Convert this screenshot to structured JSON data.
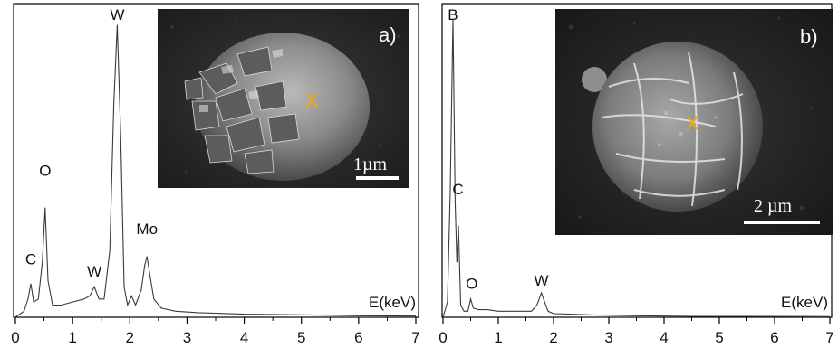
{
  "colors": {
    "spectrum_line": "#3a3a3a",
    "frame": "#000000",
    "marker": "#f2a900",
    "micrograph_bg": "#2c2c2c",
    "scale_bar": "#ffffff"
  },
  "chart_data": [
    {
      "type": "line",
      "panel": "a)",
      "xlabel": "E(keV)",
      "ylabel": "",
      "xlim": [
        0,
        7
      ],
      "ylim": [
        0,
        100
      ],
      "xticks": [
        "0",
        "1",
        "2",
        "3",
        "4",
        "5",
        "6",
        "7"
      ],
      "grid": false,
      "peak_labels": [
        {
          "text": "C",
          "x": 0.27,
          "y": 15
        },
        {
          "text": "O",
          "x": 0.52,
          "y": 44
        },
        {
          "text": "W",
          "x": 1.38,
          "y": 11
        },
        {
          "text": "W",
          "x": 1.78,
          "y": 100
        },
        {
          "text": "Mo",
          "x": 2.3,
          "y": 25
        }
      ],
      "series": [
        {
          "x": [
            0.0,
            0.15,
            0.22,
            0.27,
            0.32,
            0.4,
            0.47,
            0.52,
            0.57,
            0.65,
            0.8,
            1.0,
            1.2,
            1.3,
            1.38,
            1.46,
            1.55,
            1.65,
            1.72,
            1.78,
            1.84,
            1.9,
            1.96,
            2.03,
            2.1,
            2.2,
            2.26,
            2.3,
            2.35,
            2.42,
            2.55,
            2.8,
            3.2,
            4.0,
            5.0,
            6.0,
            7.0
          ],
          "y": [
            0,
            2,
            6,
            11,
            5,
            6,
            18,
            36,
            12,
            4,
            4,
            5,
            6,
            7,
            10,
            6,
            6,
            22,
            70,
            96,
            60,
            10,
            4,
            7,
            4,
            9,
            17,
            20,
            14,
            6,
            3,
            2,
            1.5,
            1,
            0.8,
            0.5,
            0.4
          ]
        }
      ],
      "inset": {
        "label": "a)",
        "marker": "X",
        "scale_bar": "1µm"
      }
    },
    {
      "type": "line",
      "panel": "b)",
      "xlabel": "E(keV)",
      "ylabel": "",
      "xlim": [
        0,
        7
      ],
      "ylim": [
        0,
        100
      ],
      "xticks": [
        "0",
        "1",
        "2",
        "3",
        "4",
        "5",
        "6",
        "7"
      ],
      "grid": false,
      "peak_labels": [
        {
          "text": "B",
          "x": 0.18,
          "y": 100
        },
        {
          "text": "C",
          "x": 0.27,
          "y": 38
        },
        {
          "text": "O",
          "x": 0.52,
          "y": 7
        },
        {
          "text": "W",
          "x": 1.78,
          "y": 8
        }
      ],
      "series": [
        {
          "x": [
            0.0,
            0.08,
            0.13,
            0.18,
            0.22,
            0.25,
            0.28,
            0.32,
            0.38,
            0.45,
            0.5,
            0.55,
            0.65,
            0.8,
            1.0,
            1.3,
            1.6,
            1.7,
            1.78,
            1.84,
            1.9,
            2.0,
            2.3,
            2.8,
            3.5,
            4.5,
            5.5,
            7.0
          ],
          "y": [
            0,
            5,
            40,
            98,
            38,
            18,
            30,
            4,
            2,
            2,
            6,
            3,
            2.5,
            2.5,
            2,
            2,
            2,
            4,
            8,
            5,
            2,
            1.2,
            1,
            0.7,
            0.5,
            0.3,
            0.3,
            0.2
          ]
        }
      ],
      "inset": {
        "label": "b)",
        "marker": "X",
        "scale_bar": "2 µm"
      }
    }
  ]
}
